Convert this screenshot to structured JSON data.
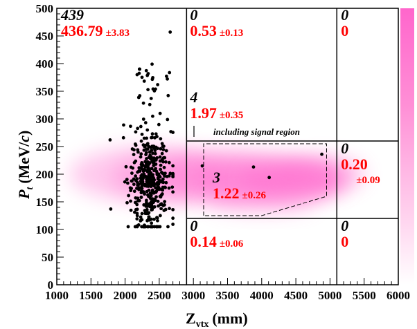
{
  "chart_data": {
    "type": "scatter",
    "title": "",
    "xlabel": "Z",
    "xlabel_sub": "vtx",
    "xlabel_unit": "(mm)",
    "ylabel": "P",
    "ylabel_sub": "t",
    "ylabel_unit_pre": "(MeV/",
    "ylabel_unit_c": "c",
    "ylabel_unit_post": ")",
    "xlim": [
      1000,
      6000
    ],
    "ylim": [
      0,
      500
    ],
    "xticks": [
      1000,
      1500,
      2000,
      2500,
      3000,
      3500,
      4000,
      4500,
      5000,
      5500,
      6000
    ],
    "yticks": [
      0,
      50,
      100,
      150,
      200,
      250,
      300,
      350,
      400,
      450,
      500
    ],
    "grid": false,
    "legend": "none",
    "colors": {
      "points": "#000000",
      "estimate_text": "#ff0000",
      "density": "#ff66cc",
      "lines": "#000000"
    },
    "region_boundaries": {
      "x": [
        2900,
        5100
      ],
      "y": [
        120,
        260
      ]
    },
    "regions": [
      {
        "obs": "439",
        "est": "436.79",
        "err": "±3.83"
      },
      {
        "obs": "0",
        "est": "0.53",
        "err": "±0.13"
      },
      {
        "obs": "0",
        "est": "0",
        "err": ""
      },
      {
        "obs": "4",
        "est": "1.97",
        "err": "±0.35"
      },
      {
        "obs": "3",
        "est": "1.22",
        "err": "±0.26"
      },
      {
        "obs": "0",
        "est": "0.20",
        "err": "±0.09"
      },
      {
        "obs": "0",
        "est": "0.14",
        "err": "±0.06"
      },
      {
        "obs": "0",
        "est": "0",
        "err": ""
      }
    ],
    "annotation": "including signal region",
    "signal_region": [
      [
        3150,
        125
      ],
      [
        3150,
        255
      ],
      [
        4950,
        255
      ],
      [
        4950,
        160
      ],
      [
        4000,
        125
      ]
    ],
    "signal_points": [
      {
        "x": 3130,
        "y": 215
      },
      {
        "x": 3880,
        "y": 213
      },
      {
        "x": 4110,
        "y": 194
      },
      {
        "x": 4880,
        "y": 236
      }
    ],
    "outlier_points": [
      {
        "x": 2660,
        "y": 457
      },
      {
        "x": 2395,
        "y": 399
      },
      {
        "x": 1780,
        "y": 262
      },
      {
        "x": 1790,
        "y": 137
      }
    ],
    "cluster": {
      "count": 435,
      "x_center": 2360,
      "x_sigma": 150,
      "y_median": 185,
      "y_min": 105,
      "y_max": 390
    }
  }
}
